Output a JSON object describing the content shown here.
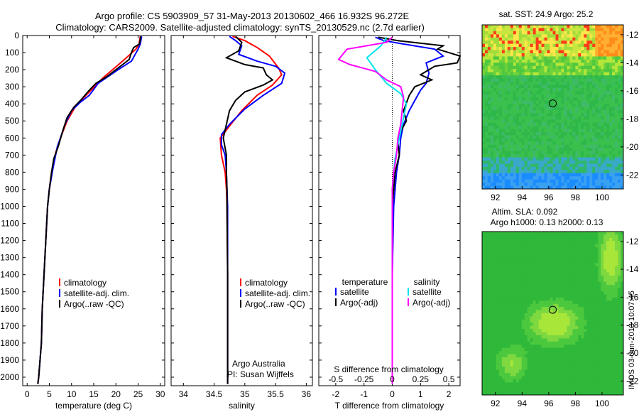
{
  "header": {
    "line1": "Argo profile: CS 5903909_57 31-May-2013 20130602_466 16.932S 96.272E",
    "line2": "Climatology: CARS2009. Satellite-adjusted climatology: synTS_20130529.nc (2.7d earlier)"
  },
  "credit": {
    "line1": "Argo Australia",
    "line2": "PI: Susan Wijffels"
  },
  "side_stamp": "IMOS 03-Jun-2013 10:07:45",
  "colors": {
    "climatology": "#ff0000",
    "satellite": "#0000ff",
    "argo": "#000000",
    "satellite_s": "#00e5ee",
    "argo_s": "#ff00ff"
  },
  "chart_data": [
    {
      "type": "line",
      "name": "temperature",
      "xlabel": "temperature (deg C)",
      "ylabel": "",
      "xlim": [
        -1,
        31
      ],
      "ylim": [
        2050,
        0
      ],
      "xticks": [
        0,
        5,
        10,
        15,
        20,
        25,
        30
      ],
      "yticks": [
        0,
        100,
        200,
        300,
        400,
        500,
        600,
        700,
        800,
        900,
        1000,
        1100,
        1200,
        1300,
        1400,
        1500,
        1600,
        1700,
        1800,
        1900,
        2000
      ],
      "legend": [
        "climatology",
        "satellite-adj. clim.",
        "Argo(..raw -QC)"
      ],
      "series": [
        {
          "name": "climatology",
          "color": "#ff0000",
          "points": [
            [
              25.5,
              5
            ],
            [
              25.2,
              50
            ],
            [
              24.5,
              80
            ],
            [
              21.5,
              150
            ],
            [
              17,
              250
            ],
            [
              14,
              330
            ],
            [
              11,
              410
            ],
            [
              9,
              500
            ],
            [
              7.5,
              600
            ],
            [
              6.5,
              680
            ],
            [
              5.5,
              800
            ],
            [
              5,
              900
            ],
            [
              4.6,
              1000
            ],
            [
              4.2,
              1200
            ],
            [
              3.8,
              1400
            ],
            [
              3.4,
              1600
            ],
            [
              3.2,
              1800
            ],
            [
              2.6,
              2000
            ],
            [
              2.4,
              2040
            ]
          ]
        },
        {
          "name": "satellite-adj. clim.",
          "color": "#0000ff",
          "points": [
            [
              25.8,
              5
            ],
            [
              25.5,
              50
            ],
            [
              25,
              80
            ],
            [
              23.5,
              150
            ],
            [
              20.5,
              200
            ],
            [
              16,
              280
            ],
            [
              14,
              350
            ],
            [
              12,
              390
            ],
            [
              10,
              440
            ],
            [
              8.5,
              520
            ],
            [
              7.5,
              600
            ],
            [
              6.8,
              650
            ],
            [
              5.8,
              780
            ],
            [
              5,
              900
            ],
            [
              4.6,
              1000
            ],
            [
              4.2,
              1200
            ],
            [
              3.8,
              1400
            ],
            [
              3.4,
              1600
            ],
            [
              3.2,
              1800
            ],
            [
              2.6,
              2000
            ],
            [
              2.4,
              2040
            ]
          ]
        },
        {
          "name": "Argo(..raw -QC)",
          "color": "#000000",
          "points": [
            [
              25.6,
              5
            ],
            [
              25.3,
              50
            ],
            [
              24,
              70
            ],
            [
              23.5,
              100
            ],
            [
              23,
              140
            ],
            [
              22,
              160
            ],
            [
              20,
              200
            ],
            [
              18,
              240
            ],
            [
              15.5,
              280
            ],
            [
              14,
              320
            ],
            [
              12,
              380
            ],
            [
              10.5,
              420
            ],
            [
              9,
              480
            ],
            [
              8,
              560
            ],
            [
              7,
              650
            ],
            [
              6,
              720
            ],
            [
              5.5,
              800
            ],
            [
              5,
              900
            ],
            [
              4.6,
              1000
            ],
            [
              4.2,
              1200
            ],
            [
              3.8,
              1400
            ],
            [
              3.4,
              1600
            ],
            [
              3.2,
              1800
            ],
            [
              2.6,
              2000
            ],
            [
              2.4,
              2040
            ]
          ]
        }
      ]
    },
    {
      "type": "line",
      "name": "salinity",
      "xlabel": "salinity",
      "ylabel": "",
      "xlim": [
        33.8,
        36.1
      ],
      "ylim": [
        2050,
        0
      ],
      "xticks": [
        34,
        34.5,
        35,
        35.5,
        36
      ],
      "legend": [
        "climatology",
        "satellite-adj. clim.",
        "Argo(..raw -QC)"
      ],
      "series": [
        {
          "name": "climatology",
          "color": "#ff0000",
          "points": [
            [
              34.8,
              5
            ],
            [
              35,
              30
            ],
            [
              35.2,
              70
            ],
            [
              35.4,
              120
            ],
            [
              35.55,
              190
            ],
            [
              35.6,
              230
            ],
            [
              35.45,
              290
            ],
            [
              35.2,
              350
            ],
            [
              34.95,
              440
            ],
            [
              34.75,
              530
            ],
            [
              34.6,
              600
            ],
            [
              34.62,
              700
            ],
            [
              34.68,
              800
            ],
            [
              34.7,
              900
            ],
            [
              34.71,
              1000
            ],
            [
              34.72,
              1400
            ],
            [
              34.72,
              1800
            ],
            [
              34.72,
              2040
            ]
          ]
        },
        {
          "name": "satellite-adj. clim.",
          "color": "#0000ff",
          "points": [
            [
              34.75,
              5
            ],
            [
              34.85,
              30
            ],
            [
              34.95,
              60
            ],
            [
              34.9,
              110
            ],
            [
              35.2,
              150
            ],
            [
              35.5,
              180
            ],
            [
              35.65,
              220
            ],
            [
              35.6,
              280
            ],
            [
              35.3,
              350
            ],
            [
              35.0,
              430
            ],
            [
              34.75,
              520
            ],
            [
              34.62,
              580
            ],
            [
              34.62,
              640
            ],
            [
              34.68,
              700
            ],
            [
              34.7,
              800
            ],
            [
              34.71,
              900
            ],
            [
              34.72,
              1000
            ],
            [
              34.72,
              1400
            ],
            [
              34.72,
              2040
            ]
          ]
        },
        {
          "name": "Argo(..raw -QC)",
          "color": "#000000",
          "points": [
            [
              34.85,
              5
            ],
            [
              34.95,
              40
            ],
            [
              34.9,
              90
            ],
            [
              34.7,
              130
            ],
            [
              35.0,
              170
            ],
            [
              35.3,
              190
            ],
            [
              35.35,
              230
            ],
            [
              35.45,
              260
            ],
            [
              35.3,
              290
            ],
            [
              35.0,
              330
            ],
            [
              34.85,
              380
            ],
            [
              34.75,
              440
            ],
            [
              34.7,
              520
            ],
            [
              34.65,
              600
            ],
            [
              34.7,
              700
            ],
            [
              34.7,
              800
            ],
            [
              34.71,
              900
            ],
            [
              34.71,
              1000
            ],
            [
              34.72,
              1400
            ],
            [
              34.72,
              2040
            ]
          ]
        }
      ]
    },
    {
      "type": "line",
      "name": "differences",
      "xlabel": "T difference from climatology",
      "xlabel2": "S difference from climatology",
      "xlim": [
        -2.6,
        2.4
      ],
      "ylim": [
        2050,
        0
      ],
      "xticks": [
        -2,
        -1,
        0,
        1,
        2
      ],
      "xticks2": [
        "-0.5",
        "-0.25",
        "0",
        "0.25",
        "0.5"
      ],
      "legend_temperature_header": "temperature",
      "legend_salinity_header": "salinity",
      "legend": [
        "satellite",
        "Argo(-adj)",
        "satellite",
        "Argo(-adj)"
      ],
      "series": [
        {
          "name": "T satellite",
          "color": "#0000ff",
          "points": [
            [
              -0.6,
              10
            ],
            [
              -0.3,
              30
            ],
            [
              0.4,
              50
            ],
            [
              1.5,
              80
            ],
            [
              1.8,
              120
            ],
            [
              1.2,
              160
            ],
            [
              1.3,
              220
            ],
            [
              1.2,
              280
            ],
            [
              1.0,
              320
            ],
            [
              0.8,
              380
            ],
            [
              0.6,
              440
            ],
            [
              0.4,
              520
            ],
            [
              0.3,
              600
            ],
            [
              0.25,
              700
            ],
            [
              0.15,
              800
            ],
            [
              0.1,
              900
            ],
            [
              0.05,
              1000
            ],
            [
              0.0,
              1400
            ],
            [
              0.0,
              2040
            ]
          ]
        },
        {
          "name": "T Argo(-adj)",
          "color": "#000000",
          "points": [
            [
              -0.5,
              10
            ],
            [
              0.2,
              30
            ],
            [
              1.8,
              60
            ],
            [
              1.6,
              80
            ],
            [
              2.4,
              120
            ],
            [
              2.3,
              160
            ],
            [
              1.5,
              180
            ],
            [
              1.0,
              230
            ],
            [
              1.4,
              260
            ],
            [
              0.8,
              300
            ],
            [
              0.6,
              350
            ],
            [
              0.4,
              440
            ],
            [
              0.5,
              500
            ],
            [
              0.3,
              560
            ],
            [
              0.2,
              620
            ],
            [
              0.25,
              700
            ],
            [
              0.1,
              800
            ],
            [
              0.05,
              900
            ],
            [
              0.0,
              1000
            ],
            [
              0.0,
              2040
            ]
          ]
        },
        {
          "name": "S satellite",
          "color": "#00e5ee",
          "points": [
            [
              -0.2,
              10
            ],
            [
              -0.4,
              60
            ],
            [
              -0.9,
              130
            ],
            [
              -0.6,
              200
            ],
            [
              -0.2,
              280
            ],
            [
              0.3,
              340
            ],
            [
              0.5,
              400
            ],
            [
              0.4,
              480
            ],
            [
              0.3,
              560
            ],
            [
              0.2,
              640
            ],
            [
              0.1,
              720
            ],
            [
              0.05,
              800
            ],
            [
              0.0,
              900
            ],
            [
              0.0,
              1400
            ],
            [
              0.0,
              2040
            ]
          ]
        },
        {
          "name": "S Argo(-adj)",
          "color": "#ff00ff",
          "points": [
            [
              0.0,
              10
            ],
            [
              -0.2,
              40
            ],
            [
              -1.6,
              80
            ],
            [
              -1.9,
              140
            ],
            [
              -1.5,
              170
            ],
            [
              -0.6,
              210
            ],
            [
              -0.2,
              260
            ],
            [
              0.3,
              300
            ],
            [
              0.4,
              360
            ],
            [
              0.35,
              440
            ],
            [
              0.3,
              520
            ],
            [
              0.2,
              600
            ],
            [
              0.15,
              700
            ],
            [
              0.05,
              800
            ],
            [
              0.0,
              900
            ],
            [
              0.0,
              1400
            ],
            [
              0.0,
              2040
            ]
          ]
        }
      ]
    },
    {
      "type": "heatmap",
      "name": "sst-map",
      "title": "sat. SST: 24.9 Argo: 25.2",
      "xlim": [
        91,
        101.6
      ],
      "ylim": [
        -23,
        -11.3
      ],
      "xticks": [
        92,
        94,
        96,
        98,
        100
      ],
      "yticks": [
        -12,
        -14,
        -16,
        -18,
        -20,
        -22
      ],
      "marker": [
        96.3,
        -16.9
      ]
    },
    {
      "type": "heatmap",
      "name": "sla-map",
      "title": "Altim. SLA: 0.092",
      "subtitle": "Argo h1000: 0.13 h2000: 0.13",
      "xlim": [
        91,
        101.6
      ],
      "ylim": [
        -23,
        -11.3
      ],
      "xticks": [
        92,
        94,
        96,
        98,
        100
      ],
      "yticks": [
        -12,
        -14,
        -16,
        -18,
        -20,
        -22
      ],
      "marker": [
        96.3,
        -16.9
      ]
    }
  ]
}
